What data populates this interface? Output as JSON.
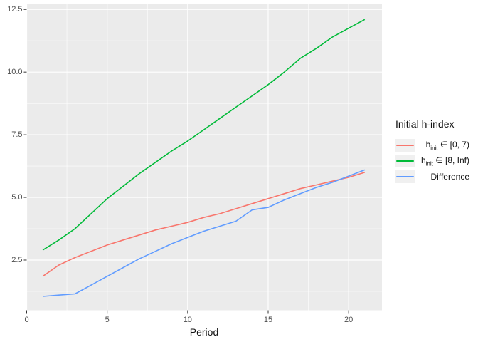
{
  "chart_data": {
    "type": "line",
    "title": "",
    "xlabel": "Period",
    "ylabel": "",
    "grid": "on",
    "legend_position": "right",
    "xlim": [
      0,
      22.07
    ],
    "ylim": [
      0.495,
      12.72
    ],
    "x": [
      1,
      2,
      3,
      4,
      5,
      6,
      7,
      8,
      9,
      10,
      11,
      12,
      13,
      14,
      15,
      16,
      17,
      18,
      19,
      20,
      21
    ],
    "series": [
      {
        "name": "h_init ∈ [0, 7)",
        "color": "#F8766D",
        "values": [
          1.85,
          2.3,
          2.6,
          2.85,
          3.1,
          3.3,
          3.5,
          3.7,
          3.85,
          4.0,
          4.2,
          4.35,
          4.55,
          4.75,
          4.95,
          5.15,
          5.35,
          5.5,
          5.65,
          5.8,
          6.0
        ]
      },
      {
        "name": "h_init ∈ [8, Inf)",
        "color": "#00BA38",
        "values": [
          2.9,
          3.3,
          3.75,
          4.35,
          4.95,
          5.45,
          5.95,
          6.4,
          6.85,
          7.25,
          7.7,
          8.15,
          8.6,
          9.05,
          9.5,
          10.0,
          10.55,
          10.95,
          11.4,
          11.75,
          12.1
        ]
      },
      {
        "name": "Difference",
        "color": "#619CFF",
        "values": [
          1.05,
          1.1,
          1.15,
          1.5,
          1.85,
          2.2,
          2.55,
          2.85,
          3.15,
          3.4,
          3.65,
          3.85,
          4.05,
          4.5,
          4.6,
          4.9,
          5.15,
          5.4,
          5.6,
          5.85,
          6.1
        ]
      }
    ],
    "x_ticks": {
      "values": [
        0,
        5,
        10,
        15,
        20
      ],
      "labels": [
        "0",
        "5",
        "10",
        "15",
        "20"
      ],
      "minor": [
        2.5,
        7.5,
        12.5,
        17.5
      ]
    },
    "y_ticks": {
      "values": [
        2.5,
        5,
        7.5,
        10,
        12.5
      ],
      "labels": [
        "2.5",
        "5.0",
        "7.5",
        "10.0",
        "12.5"
      ],
      "minor": [
        1.25,
        3.75,
        6.25,
        8.75,
        11.25
      ]
    }
  },
  "legend": {
    "title": "Initial h-index",
    "items": [
      {
        "label": "h_init ∈ [0, 7)",
        "base": "h",
        "sub": "init",
        "rest": " ∈ [0, 7)",
        "color": "#F8766D"
      },
      {
        "label": "h_init ∈ [8, Inf)",
        "base": "h",
        "sub": "init",
        "rest": " ∈ [8, Inf)",
        "color": "#00BA38"
      },
      {
        "label": "Difference",
        "base": "Difference",
        "sub": "",
        "rest": "",
        "color": "#619CFF"
      }
    ]
  },
  "colors": {
    "panel_bg": "#EBEBEB",
    "grid": "#FFFFFF",
    "tick_text": "#4D4D4D",
    "tick_mark": "#333333",
    "legend_key_bg": "#F0F0F0"
  }
}
